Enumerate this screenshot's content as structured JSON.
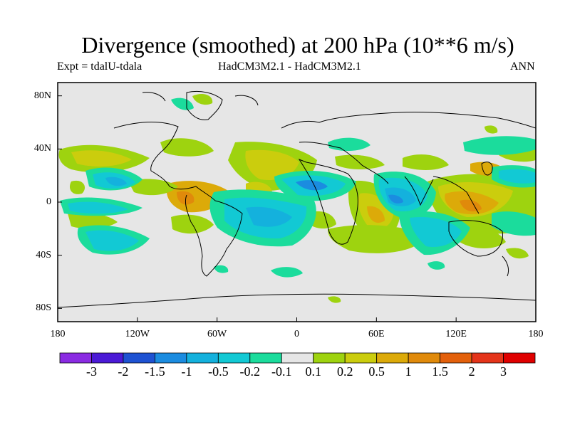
{
  "title": "Divergence (smoothed) at 200 hPa (10**6 m/s)",
  "subtitle_left": "Expt = tdalU-tdala",
  "subtitle_center": "HadCM3M2.1 - HadCM3M2.1",
  "subtitle_right": "ANN",
  "y_axis": [
    "80N",
    "40N",
    "0",
    "40S",
    "80S"
  ],
  "x_axis": [
    "180",
    "120W",
    "60W",
    "0",
    "60E",
    "120E",
    "180"
  ],
  "colorbar": {
    "labels": [
      "-3",
      "-2",
      "-1.5",
      "-1",
      "-0.5",
      "-0.2",
      "-0.1",
      "0.1",
      "0.2",
      "0.5",
      "1",
      "1.5",
      "2",
      "3"
    ],
    "colors": [
      "#8a2be2",
      "#4b1ad6",
      "#1e52d2",
      "#1b8ce0",
      "#14b1dd",
      "#12c9d4",
      "#1bdc9c",
      "#e6e6e6",
      "#9ed30f",
      "#cbcd0d",
      "#dcaa09",
      "#e08a0b",
      "#e3600b",
      "#e4341a",
      "#df0000"
    ]
  }
}
